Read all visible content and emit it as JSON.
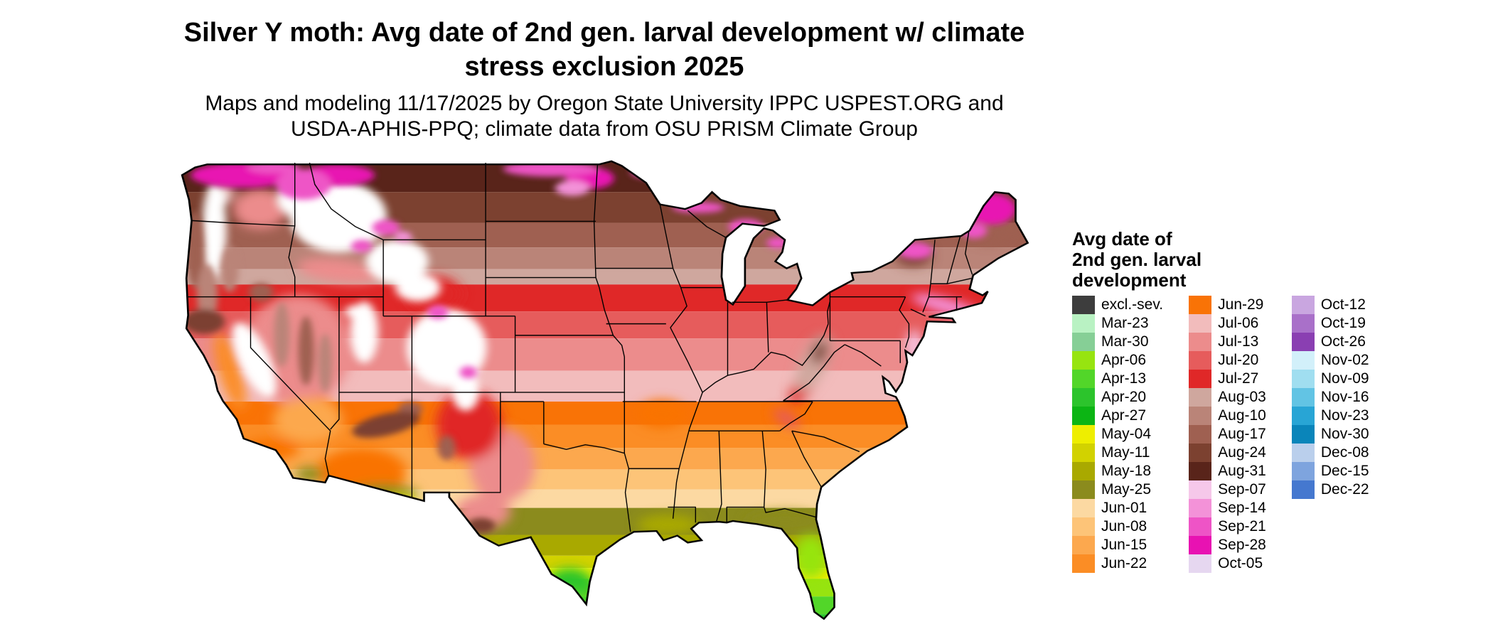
{
  "title": {
    "line1": "Silver Y moth: Avg date of 2nd gen. larval development w/ climate",
    "line2": "stress exclusion 2025"
  },
  "subtitle": {
    "line1": "Maps and modeling 11/17/2025 by Oregon State University IPPC USPEST.ORG and",
    "line2": "USDA-APHIS-PPQ; climate data from OSU PRISM Climate Group"
  },
  "legend": {
    "title_lines": [
      "Avg date of",
      "2nd gen. larval",
      "development"
    ],
    "columns": [
      [
        {
          "label": "excl.-sev.",
          "color": "#3d3d3d"
        },
        {
          "label": "Mar-23",
          "color": "#b9f2c3"
        },
        {
          "label": "Mar-30",
          "color": "#86cf96"
        },
        {
          "label": "Apr-06",
          "color": "#97e410"
        },
        {
          "label": "Apr-13",
          "color": "#52d629"
        },
        {
          "label": "Apr-20",
          "color": "#2cc42c"
        },
        {
          "label": "Apr-27",
          "color": "#0cb514"
        },
        {
          "label": "May-04",
          "color": "#eeee00"
        },
        {
          "label": "May-11",
          "color": "#d2d200"
        },
        {
          "label": "May-18",
          "color": "#a9a900"
        },
        {
          "label": "May-25",
          "color": "#8b8b1d"
        },
        {
          "label": "Jun-01",
          "color": "#fcd9a2"
        },
        {
          "label": "Jun-08",
          "color": "#fdc478"
        },
        {
          "label": "Jun-15",
          "color": "#fca84e"
        },
        {
          "label": "Jun-22",
          "color": "#fb8d25"
        }
      ],
      [
        {
          "label": "Jun-29",
          "color": "#f97306"
        },
        {
          "label": "Jul-06",
          "color": "#f2bcbc"
        },
        {
          "label": "Jul-13",
          "color": "#ec8c8c"
        },
        {
          "label": "Jul-20",
          "color": "#e65c5c"
        },
        {
          "label": "Jul-27",
          "color": "#e02828"
        },
        {
          "label": "Aug-03",
          "color": "#cfa79e"
        },
        {
          "label": "Aug-10",
          "color": "#ba8478"
        },
        {
          "label": "Aug-17",
          "color": "#9f6051"
        },
        {
          "label": "Aug-24",
          "color": "#7c4130"
        },
        {
          "label": "Aug-31",
          "color": "#59241a"
        },
        {
          "label": "Sep-07",
          "color": "#f6c8ea"
        },
        {
          "label": "Sep-14",
          "color": "#f392d8"
        },
        {
          "label": "Sep-21",
          "color": "#ee54c6"
        },
        {
          "label": "Sep-28",
          "color": "#e812b2"
        },
        {
          "label": "Oct-05",
          "color": "#e6d7f0"
        }
      ],
      [
        {
          "label": "Oct-12",
          "color": "#c9a6e0"
        },
        {
          "label": "Oct-19",
          "color": "#a970c9"
        },
        {
          "label": "Oct-26",
          "color": "#8a3fb2"
        },
        {
          "label": "Nov-02",
          "color": "#d2f0fa"
        },
        {
          "label": "Nov-09",
          "color": "#a0def0"
        },
        {
          "label": "Nov-16",
          "color": "#62c4e4"
        },
        {
          "label": "Nov-23",
          "color": "#28a5d5"
        },
        {
          "label": "Nov-30",
          "color": "#0a85ba"
        },
        {
          "label": "Dec-08",
          "color": "#bacfec"
        },
        {
          "label": "Dec-15",
          "color": "#7ea4de"
        },
        {
          "label": "Dec-22",
          "color": "#4578cf"
        }
      ]
    ]
  }
}
